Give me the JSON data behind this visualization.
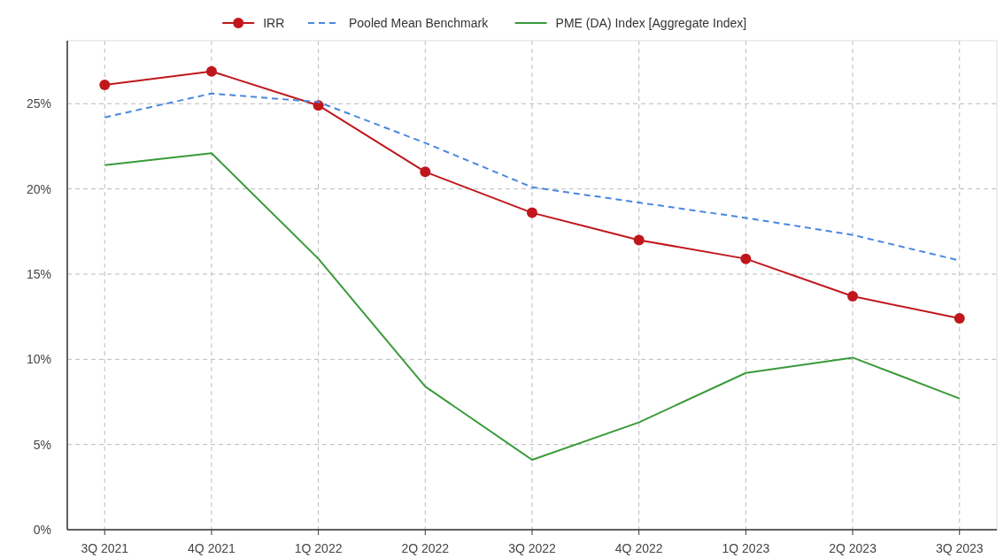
{
  "chart_data": {
    "type": "line",
    "categories": [
      "3Q 2021",
      "4Q 2021",
      "1Q 2022",
      "2Q 2022",
      "3Q 2022",
      "4Q 2022",
      "1Q 2023",
      "2Q 2023",
      "3Q 2023"
    ],
    "series": [
      {
        "name": "IRR",
        "color": "#c0171c",
        "marker": "circle",
        "line_style": "solid",
        "values": [
          26.1,
          26.9,
          24.9,
          21.0,
          18.6,
          17.0,
          15.9,
          13.7,
          12.4
        ]
      },
      {
        "name": "Pooled Mean Benchmark",
        "color": "#4a86e0",
        "marker": "none",
        "line_style": "dashed",
        "values": [
          24.2,
          25.6,
          25.1,
          22.7,
          20.1,
          19.2,
          18.3,
          17.3,
          15.8
        ]
      },
      {
        "name": "PME (DA) Index [Aggregate Index]",
        "color": "#3a9a3a",
        "marker": "none",
        "line_style": "solid",
        "values": [
          21.4,
          22.1,
          15.9,
          8.4,
          4.1,
          6.3,
          9.2,
          10.1,
          7.7
        ]
      }
    ],
    "ylim": [
      0,
      28.7
    ],
    "yticks": [
      {
        "value": 0,
        "label": "0%"
      },
      {
        "value": 5,
        "label": "5%"
      },
      {
        "value": 10,
        "label": "10%"
      },
      {
        "value": 15,
        "label": "15%"
      },
      {
        "value": 20,
        "label": "20%"
      },
      {
        "value": 25,
        "label": "25%"
      }
    ],
    "grid": true,
    "legend": "top"
  }
}
